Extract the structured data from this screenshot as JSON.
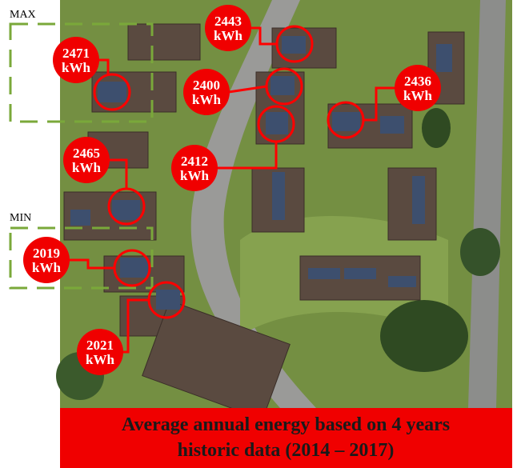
{
  "markers": {
    "max": "MAX",
    "min": "MIN"
  },
  "annotations": [
    {
      "value": "2471",
      "unit": "kWh"
    },
    {
      "value": "2443",
      "unit": "kWh"
    },
    {
      "value": "2400",
      "unit": "kWh"
    },
    {
      "value": "2436",
      "unit": "kWh"
    },
    {
      "value": "2412",
      "unit": "kWh"
    },
    {
      "value": "2465",
      "unit": "kWh"
    },
    {
      "value": "2019",
      "unit": "kWh"
    },
    {
      "value": "2021",
      "unit": "kWh"
    }
  ],
  "caption": {
    "line1": "Average annual energy based on 4 years",
    "line2": "historic data (2014 – 2017)"
  }
}
